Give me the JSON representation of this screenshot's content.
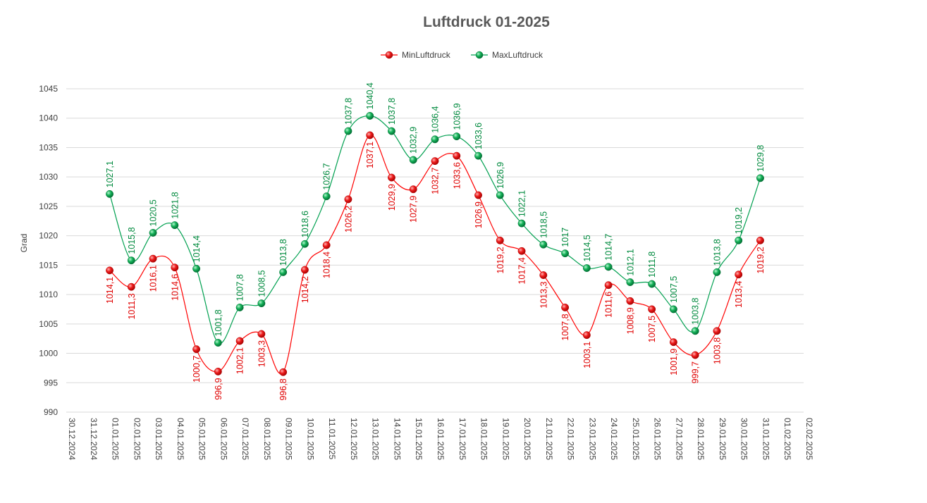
{
  "chart_data": {
    "type": "line",
    "title": "Luftdruck 01-2025",
    "ylabel": "Grad",
    "xlabel": "",
    "ylim": [
      990,
      1045
    ],
    "yticks": [
      "990",
      "995",
      "1000",
      "1005",
      "1010",
      "1015",
      "1020",
      "1025",
      "1030",
      "1035",
      "1040",
      "1045"
    ],
    "grid": true,
    "legend_position": "top-center",
    "x": [
      "30.12.2024",
      "31.12.2024",
      "01.01.2025",
      "02.01.2025",
      "03.01.2025",
      "04.01.2025",
      "05.01.2025",
      "06.01.2025",
      "07.01.2025",
      "08.01.2025",
      "09.01.2025",
      "10.01.2025",
      "11.01.2025",
      "12.01.2025",
      "13.01.2025",
      "14.01.2025",
      "15.01.2025",
      "16.01.2025",
      "17.01.2025",
      "18.01.2025",
      "19.01.2025",
      "20.01.2025",
      "21.01.2025",
      "22.01.2025",
      "23.01.2025",
      "24.01.2025",
      "25.01.2025",
      "26.01.2025",
      "27.01.2025",
      "28.01.2025",
      "29.01.2025",
      "30.01.2025",
      "31.01.2025",
      "01.02.2025",
      "02.02.2025"
    ],
    "series": [
      {
        "name": "MinLuftdruck",
        "color": "#ff0000",
        "values": [
          null,
          null,
          1014.1,
          1011.3,
          1016.1,
          1014.6,
          1000.7,
          996.9,
          1002.1,
          1003.3,
          996.8,
          1014.2,
          1018.4,
          1026.2,
          1037.1,
          1029.9,
          1027.9,
          1032.7,
          1033.6,
          1026.9,
          1019.2,
          1017.4,
          1013.3,
          1007.8,
          1003.1,
          1011.6,
          1008.9,
          1007.5,
          1001.9,
          999.7,
          1003.8,
          1013.4,
          1019.2,
          null,
          null
        ],
        "labels": [
          null,
          null,
          "1014,1",
          "1011,3",
          "1016,1",
          "1014,6",
          "1000,7",
          "996,9",
          "1002,1",
          "1003,3",
          "996,8",
          "1014,2",
          "1018,4",
          "1026,2",
          "1037,1",
          "1029,9",
          "1027,9",
          "1032,7",
          "1033,6",
          "1026,9",
          "1019,2",
          "1017,4",
          "1013,3",
          "1007,8",
          "1003,1",
          "1011,6",
          "1008,9",
          "1007,5",
          "1001,9",
          "999,7",
          "1003,8",
          "1013,4",
          "1019,2",
          null,
          null
        ]
      },
      {
        "name": "MaxLuftdruck",
        "color": "#00a050",
        "values": [
          null,
          null,
          1027.1,
          1015.8,
          1020.5,
          1021.8,
          1014.4,
          1001.8,
          1007.8,
          1008.5,
          1013.8,
          1018.6,
          1026.7,
          1037.8,
          1040.4,
          1037.8,
          1032.9,
          1036.4,
          1036.9,
          1033.6,
          1026.9,
          1022.1,
          1018.5,
          1017,
          1014.5,
          1014.7,
          1012.1,
          1011.8,
          1007.5,
          1003.8,
          1013.8,
          1019.2,
          1029.8,
          null,
          null
        ],
        "labels": [
          null,
          null,
          "1027,1",
          "1015,8",
          "1020,5",
          "1021,8",
          "1014,4",
          "1001,8",
          "1007,8",
          "1008,5",
          "1013,8",
          "1018,6",
          "1026,7",
          "1037,8",
          "1040,4",
          "1037,8",
          "1032,9",
          "1036,4",
          "1036,9",
          "1033,6",
          "1026,9",
          "1022,1",
          "1018,5",
          "1017",
          "1014,5",
          "1014,7",
          "1012,1",
          "1011,8",
          "1007,5",
          "1003,8",
          "1013,8",
          "1019,2",
          "1029,8",
          null,
          null
        ]
      }
    ]
  }
}
